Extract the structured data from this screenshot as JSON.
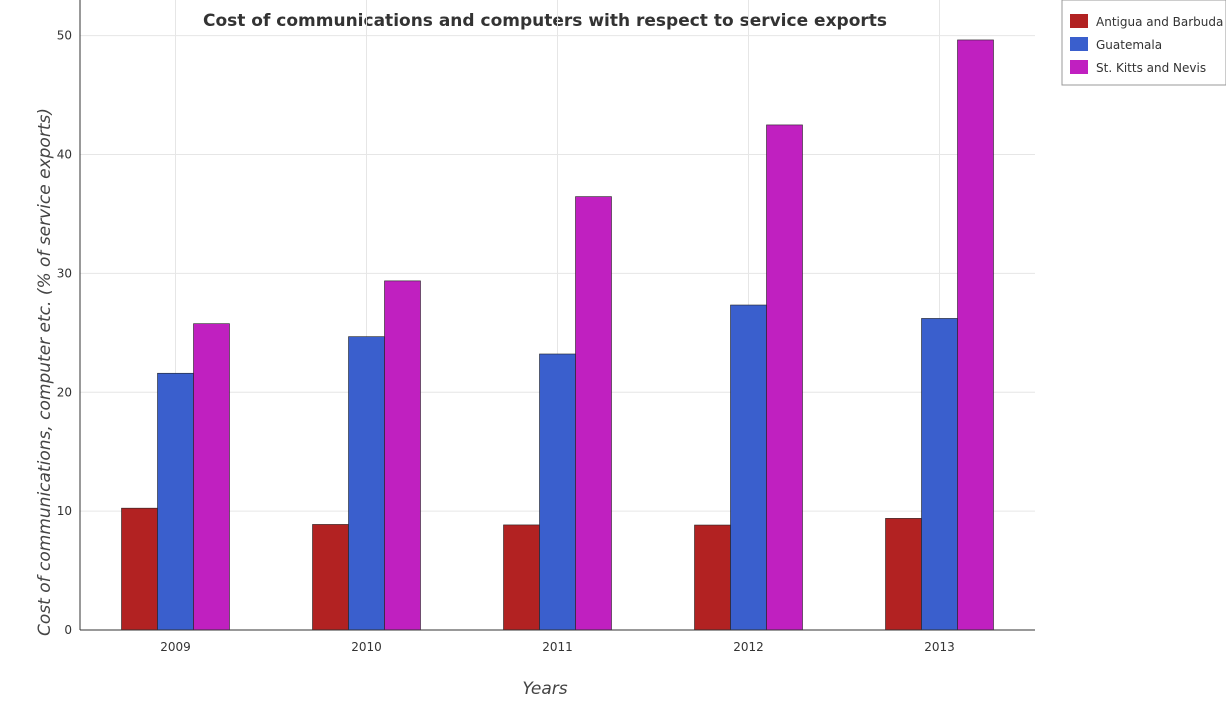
{
  "chart_data": {
    "type": "bar",
    "title": "Cost of communications and computers with respect to service exports",
    "xlabel": "Years",
    "ylabel": "Cost of communications, computer etc. (% of service exports)",
    "categories": [
      "2009",
      "2010",
      "2011",
      "2012",
      "2013"
    ],
    "series": [
      {
        "name": "Antigua and Barbuda",
        "color": "#b22222",
        "values": [
          10.25,
          8.88,
          8.84,
          8.83,
          9.39
        ]
      },
      {
        "name": "Guatemala",
        "color": "#3a5fcd",
        "values": [
          21.6,
          24.68,
          23.22,
          27.34,
          26.21
        ]
      },
      {
        "name": "St. Kitts and Nevis",
        "color": "#c020c0",
        "values": [
          25.77,
          29.37,
          36.46,
          42.49,
          49.64
        ]
      }
    ],
    "ylim": [
      0,
      53
    ],
    "yticks": [
      0,
      10,
      20,
      30,
      40,
      50
    ],
    "grid": true,
    "legend_position": "top-right"
  }
}
